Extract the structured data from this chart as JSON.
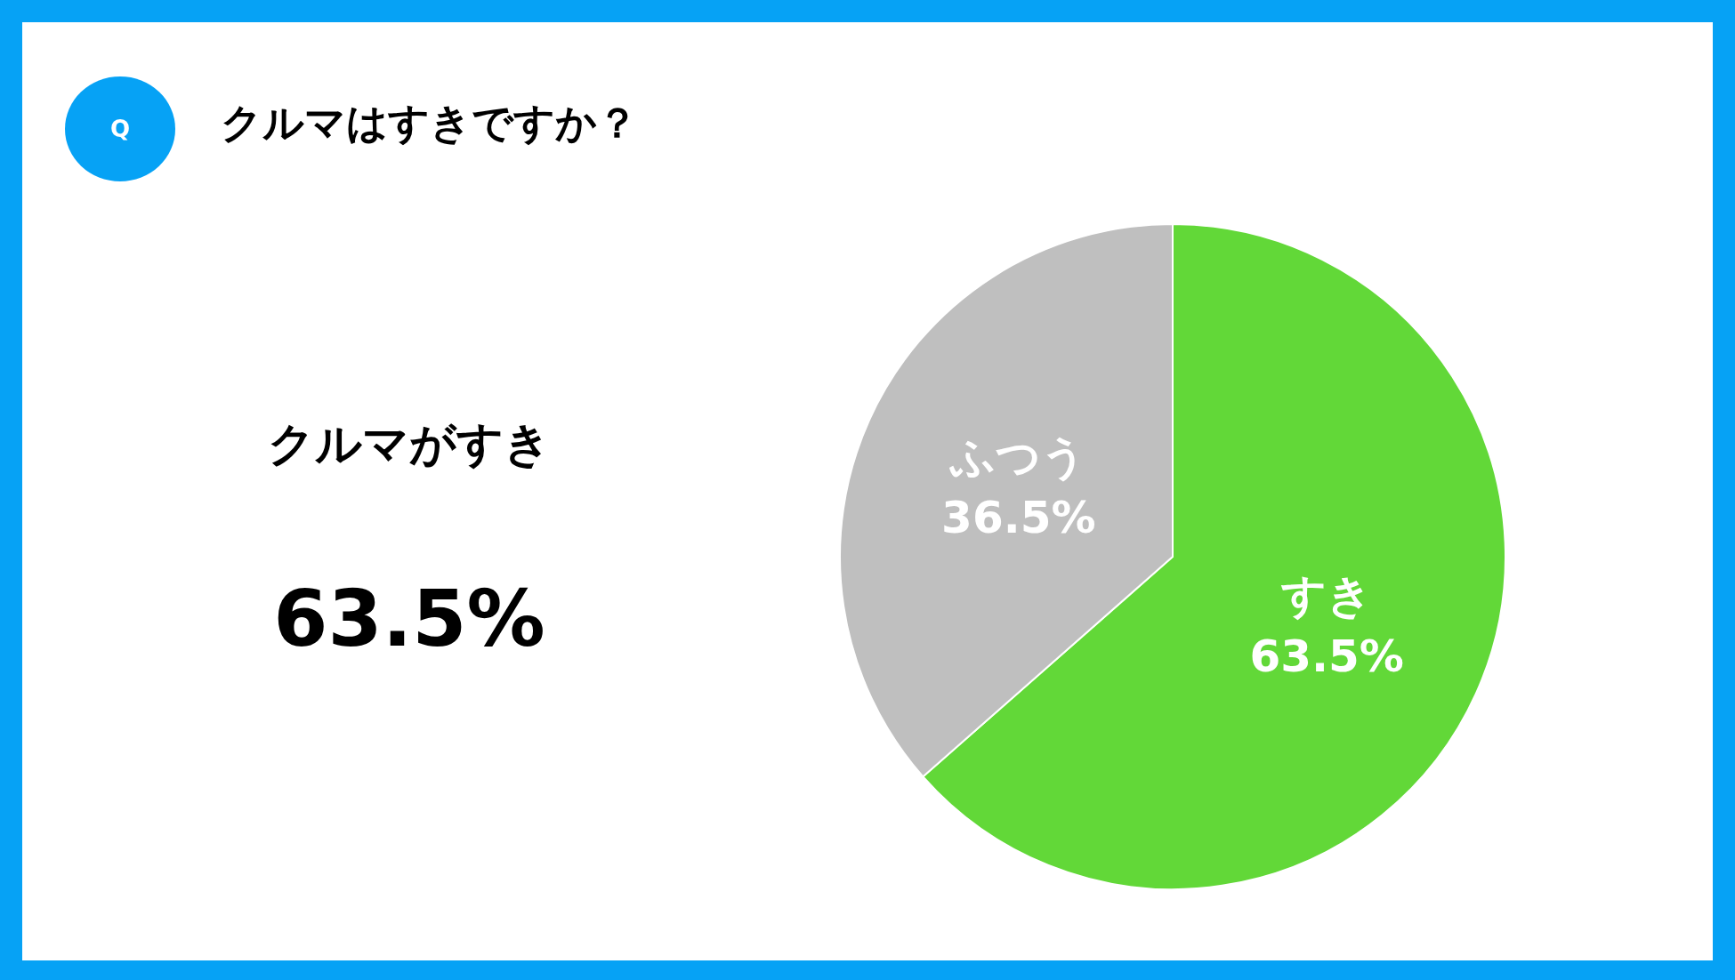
{
  "chart_data": {
    "type": "pie",
    "title": "クルマはすきですか？",
    "categories": [
      "すき",
      "ふつう"
    ],
    "values": [
      63.5,
      36.5
    ],
    "colors": [
      "#62d838",
      "#bfbfbf"
    ],
    "value_labels": [
      "63.5%",
      "36.5%"
    ],
    "annotations": [
      "Q",
      "クルマがすき",
      "63.5%"
    ],
    "legend": false
  }
}
